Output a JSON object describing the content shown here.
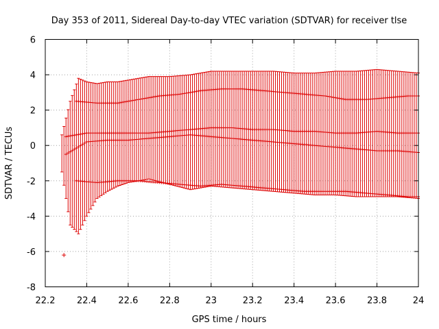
{
  "chart_data": {
    "type": "scatter",
    "title": "Day 353 of 2011, Sidereal Day-to-day VTEC variation (SDTVAR) for receiver tlse",
    "xlabel": "GPS time / hours",
    "ylabel": "SDTVAR / TECUs",
    "xlim": [
      22.2,
      24
    ],
    "ylim": [
      -8,
      6
    ],
    "xticks": [
      22.2,
      22.4,
      22.6,
      22.8,
      23,
      23.2,
      23.4,
      23.6,
      23.8,
      24
    ],
    "xtick_labels": [
      "22.2",
      "22.4",
      "22.6",
      "22.8",
      "23",
      "23.2",
      "23.4",
      "23.6",
      "23.8",
      "24"
    ],
    "yticks": [
      -8,
      -6,
      -4,
      -2,
      0,
      2,
      4,
      6
    ],
    "ytick_labels": [
      "-8",
      "-6",
      "-4",
      "-2",
      "0",
      "2",
      "4",
      "6"
    ],
    "grid": true,
    "marker": "plus",
    "error_bars": true,
    "series_color": "#dd0000",
    "x_start": 22.28,
    "x_end": 24.0,
    "x_step": 0.01,
    "upper_envelope": {
      "x": [
        22.28,
        22.32,
        22.36,
        22.4,
        22.45,
        22.5,
        22.55,
        22.6,
        22.65,
        22.7,
        22.8,
        22.9,
        23.0,
        23.1,
        23.2,
        23.3,
        23.4,
        23.5,
        23.6,
        23.7,
        23.8,
        23.9,
        24.0
      ],
      "y": [
        0.6,
        2.5,
        3.8,
        3.6,
        3.5,
        3.6,
        3.6,
        3.7,
        3.8,
        3.9,
        3.9,
        4.0,
        4.2,
        4.2,
        4.2,
        4.2,
        4.1,
        4.1,
        4.2,
        4.2,
        4.3,
        4.2,
        4.1
      ]
    },
    "lower_envelope": {
      "x": [
        22.28,
        22.32,
        22.36,
        22.4,
        22.45,
        22.5,
        22.55,
        22.6,
        22.65,
        22.7,
        22.8,
        22.9,
        23.0,
        23.1,
        23.2,
        23.3,
        23.4,
        23.5,
        23.6,
        23.7,
        23.8,
        23.9,
        24.0
      ],
      "y": [
        -1.5,
        -4.5,
        -5.0,
        -4.0,
        -3.0,
        -2.6,
        -2.3,
        -2.1,
        -2.0,
        -1.9,
        -2.2,
        -2.5,
        -2.3,
        -2.4,
        -2.5,
        -2.6,
        -2.7,
        -2.8,
        -2.8,
        -2.9,
        -2.9,
        -2.9,
        -3.0
      ]
    },
    "center_tracks": [
      {
        "x": [
          22.3,
          22.4,
          22.5,
          22.6,
          22.7,
          22.8,
          22.9,
          23.0,
          23.1,
          23.2,
          23.3,
          23.4,
          23.5,
          23.6,
          23.7,
          23.8,
          23.9,
          24.0
        ],
        "y": [
          0.5,
          0.7,
          0.7,
          0.7,
          0.7,
          0.8,
          0.9,
          1.0,
          1.0,
          0.9,
          0.9,
          0.8,
          0.8,
          0.7,
          0.7,
          0.8,
          0.7,
          0.7
        ]
      },
      {
        "x": [
          22.3,
          22.4,
          22.5,
          22.6,
          22.7,
          22.8,
          22.9,
          23.0,
          23.1,
          23.2,
          23.3,
          23.4,
          23.5,
          23.6,
          23.7,
          23.8,
          23.9,
          24.0
        ],
        "y": [
          -0.5,
          0.2,
          0.3,
          0.3,
          0.4,
          0.5,
          0.6,
          0.5,
          0.4,
          0.3,
          0.2,
          0.1,
          0.0,
          -0.1,
          -0.2,
          -0.3,
          -0.3,
          -0.4
        ]
      },
      {
        "x": [
          22.35,
          22.45,
          22.55,
          22.65,
          22.75,
          22.85,
          22.95,
          23.05,
          23.15,
          23.25,
          23.35,
          23.45,
          23.55,
          23.65,
          23.75,
          23.85,
          23.95,
          24.0
        ],
        "y": [
          2.5,
          2.4,
          2.4,
          2.6,
          2.8,
          2.9,
          3.1,
          3.2,
          3.2,
          3.1,
          3.0,
          2.9,
          2.8,
          2.6,
          2.6,
          2.7,
          2.8,
          2.8
        ]
      },
      {
        "x": [
          22.35,
          22.45,
          22.55,
          22.65,
          22.75,
          22.85,
          22.95,
          23.05,
          23.15,
          23.25,
          23.35,
          23.45,
          23.55,
          23.65,
          23.75,
          23.85,
          23.95,
          24.0
        ],
        "y": [
          -2.0,
          -2.1,
          -2.0,
          -2.0,
          -2.1,
          -2.2,
          -2.3,
          -2.2,
          -2.3,
          -2.4,
          -2.5,
          -2.6,
          -2.6,
          -2.6,
          -2.7,
          -2.8,
          -2.9,
          -2.9
        ]
      }
    ],
    "outlier": {
      "x": 22.29,
      "y": -6.2
    }
  }
}
